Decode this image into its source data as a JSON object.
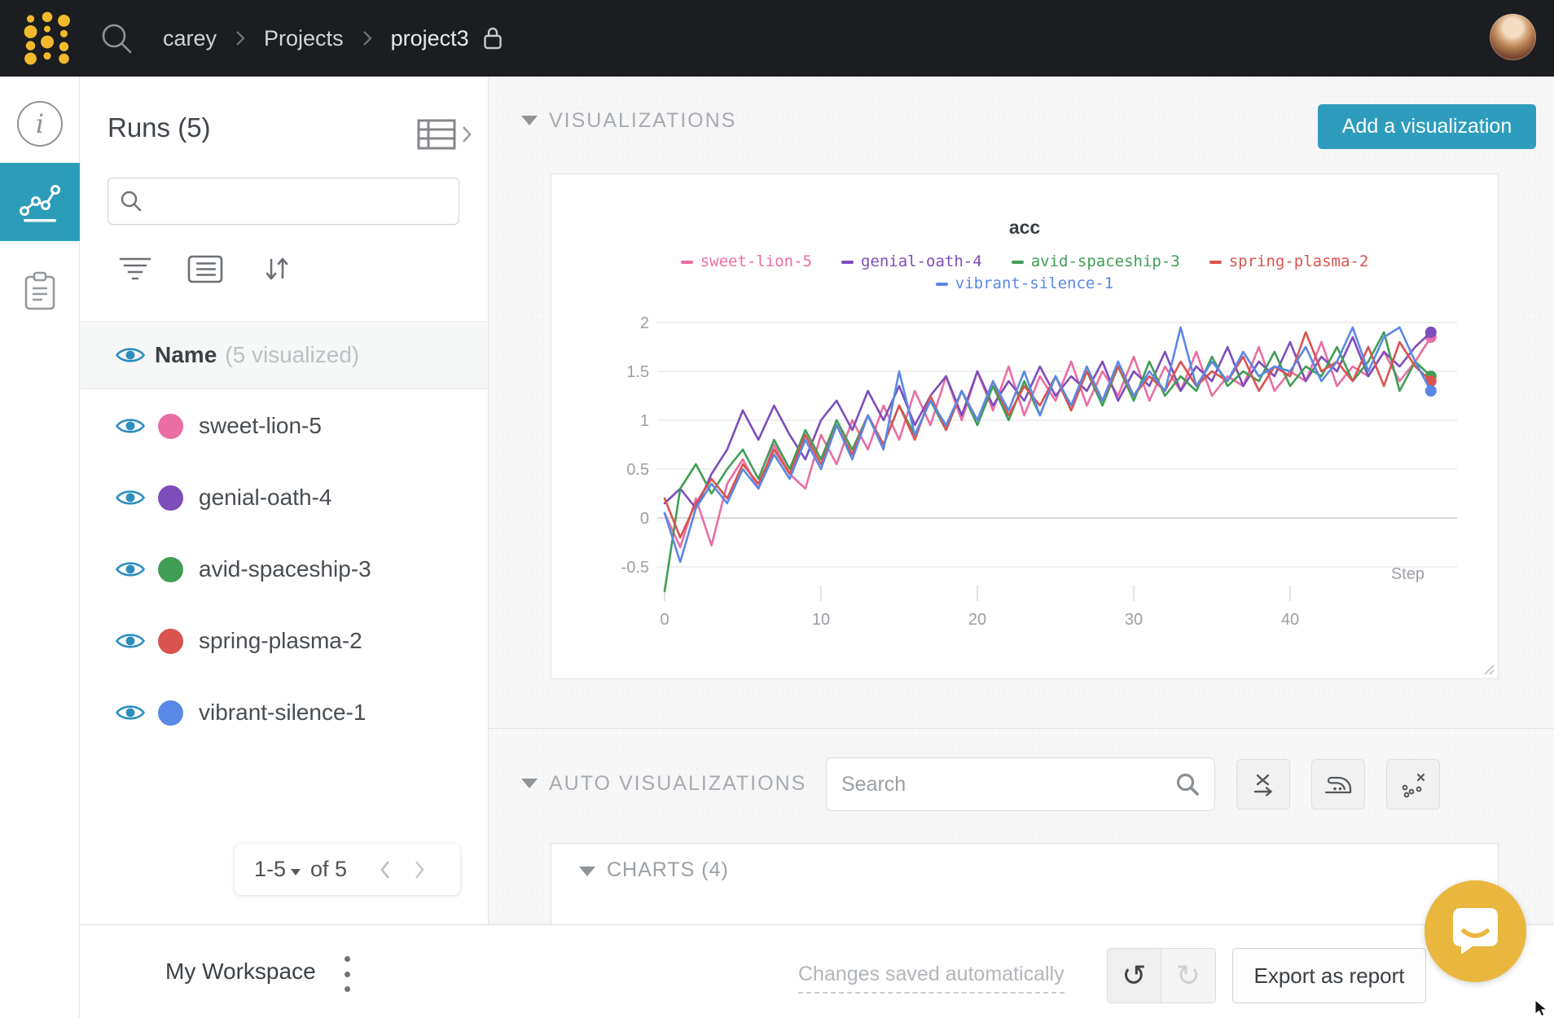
{
  "colors": {
    "navbar_bg": "#1b1d20",
    "accent_teal": "#2e9cbc",
    "logo_yellow": "#f3b92e",
    "chat_yellow": "#e9b63e",
    "eye_blue": "#2c8ebf"
  },
  "icons": {
    "navbar": [
      "search-icon",
      "chevron-right-icon",
      "lock-icon"
    ],
    "rail": [
      "info-icon",
      "line-chart-icon",
      "notes-icon"
    ],
    "runs_panel": [
      "table-columns-icon",
      "chevron-right-icon",
      "search-icon",
      "filter-icon",
      "list-icon",
      "sort-icon",
      "eye-icon"
    ],
    "main": [
      "collapse-triangle-icon",
      "search-icon",
      "x-axis-expression-icon",
      "smoothing-iron-icon",
      "outliers-scatter-icon",
      "resize-handle-icon"
    ],
    "footer": [
      "kebab-menu-icon",
      "undo-icon",
      "redo-icon",
      "chat-bubble-icon",
      "mouse-cursor"
    ],
    "undo_glyph": "↺",
    "redo_glyph": "↻"
  },
  "navbar": {
    "breadcrumb": {
      "user": "carey",
      "section": "Projects",
      "project": "project3"
    }
  },
  "runs_panel": {
    "title": "Runs (5)",
    "header_row": {
      "label": "Name",
      "suffix": "(5 visualized)"
    },
    "runs": [
      {
        "name": "sweet-lion-5",
        "color": "#ea6da4"
      },
      {
        "name": "genial-oath-4",
        "color": "#7d4dbb"
      },
      {
        "name": "avid-spaceship-3",
        "color": "#3f9e54"
      },
      {
        "name": "spring-plasma-2",
        "color": "#d9534f"
      },
      {
        "name": "vibrant-silence-1",
        "color": "#5a88e6"
      }
    ],
    "pagination": {
      "range": "1-5",
      "of_label": "of 5"
    }
  },
  "main": {
    "visualizations_header": "VISUALIZATIONS",
    "add_button": "Add a visualization",
    "auto_viz_header": "AUTO VISUALIZATIONS",
    "search_placeholder": "Search",
    "charts_header": "CHARTS (4)"
  },
  "footer": {
    "workspace": "My Workspace",
    "saved_status": "Changes saved automatically",
    "export_button": "Export as report"
  },
  "chart_data": {
    "type": "line",
    "title": "acc",
    "xlabel": "Step",
    "ylabel": "",
    "x_ticks": [
      0,
      10,
      20,
      30,
      40
    ],
    "y_ticks": [
      2,
      1.5,
      1,
      0.5,
      0,
      -0.5
    ],
    "xlim": [
      0,
      49
    ],
    "ylim": [
      -0.85,
      2.1
    ],
    "grid": true,
    "legend_position": "top",
    "series": [
      {
        "name": "sweet-lion-5",
        "color": "#ea6da4",
        "values": [
          0.05,
          -0.3,
          0.2,
          -0.28,
          0.35,
          0.6,
          0.3,
          0.75,
          0.45,
          0.3,
          0.85,
          0.55,
          1.0,
          0.7,
          1.15,
          0.8,
          1.3,
          0.95,
          1.45,
          1.0,
          1.5,
          1.1,
          1.55,
          1.05,
          1.45,
          1.2,
          1.6,
          1.15,
          1.5,
          1.25,
          1.65,
          1.2,
          1.55,
          1.3,
          1.7,
          1.25,
          1.45,
          1.35,
          1.75,
          1.3,
          1.5,
          1.4,
          1.8,
          1.35,
          1.55,
          1.45,
          1.7,
          1.4,
          1.6,
          1.85
        ]
      },
      {
        "name": "genial-oath-4",
        "color": "#7d4dbb",
        "values": [
          0.15,
          0.3,
          0.1,
          0.45,
          0.7,
          1.1,
          0.8,
          1.15,
          0.85,
          0.6,
          1.0,
          1.2,
          0.9,
          1.3,
          1.0,
          1.35,
          0.95,
          1.25,
          1.45,
          1.05,
          1.5,
          1.15,
          1.4,
          1.2,
          1.55,
          1.25,
          1.45,
          1.3,
          1.6,
          1.2,
          1.5,
          1.35,
          1.7,
          1.3,
          1.55,
          1.4,
          1.75,
          1.35,
          1.6,
          1.45,
          1.8,
          1.4,
          1.65,
          1.5,
          1.85,
          1.45,
          1.7,
          1.55,
          1.75,
          1.9
        ]
      },
      {
        "name": "avid-spaceship-3",
        "color": "#3f9e54",
        "values": [
          -0.75,
          0.3,
          0.55,
          0.25,
          0.5,
          0.7,
          0.4,
          0.8,
          0.5,
          0.9,
          0.6,
          1.0,
          0.7,
          1.05,
          0.75,
          1.15,
          0.85,
          1.2,
          0.9,
          1.3,
          0.95,
          1.35,
          1.0,
          1.4,
          1.05,
          1.45,
          1.1,
          1.5,
          1.15,
          1.55,
          1.2,
          1.6,
          1.25,
          1.45,
          1.3,
          1.65,
          1.35,
          1.5,
          1.4,
          1.7,
          1.35,
          1.55,
          1.45,
          1.75,
          1.4,
          1.6,
          1.9,
          1.3,
          1.6,
          1.45
        ]
      },
      {
        "name": "spring-plasma-2",
        "color": "#d9534f",
        "values": [
          0.2,
          -0.2,
          0.15,
          0.4,
          0.2,
          0.55,
          0.35,
          0.7,
          0.45,
          0.85,
          0.55,
          0.95,
          0.65,
          1.05,
          0.75,
          1.15,
          0.8,
          1.25,
          0.9,
          1.3,
          1.0,
          1.4,
          1.05,
          1.35,
          1.15,
          1.45,
          1.1,
          1.5,
          1.2,
          1.55,
          1.25,
          1.45,
          1.3,
          1.6,
          1.35,
          1.5,
          1.4,
          1.65,
          1.3,
          1.55,
          1.45,
          1.9,
          1.5,
          1.6,
          1.4,
          1.75,
          1.35,
          1.8,
          1.55,
          1.4
        ]
      },
      {
        "name": "vibrant-silence-1",
        "color": "#5a88e6",
        "values": [
          0.05,
          -0.45,
          0.1,
          0.35,
          0.15,
          0.5,
          0.3,
          0.65,
          0.4,
          0.8,
          0.5,
          0.95,
          0.6,
          1.05,
          0.7,
          1.5,
          0.85,
          1.2,
          0.95,
          1.3,
          1.0,
          1.4,
          1.1,
          1.5,
          1.05,
          1.45,
          1.15,
          1.55,
          1.2,
          1.6,
          1.25,
          1.5,
          1.3,
          1.95,
          1.35,
          1.6,
          1.4,
          1.7,
          1.45,
          1.55,
          1.5,
          1.75,
          1.4,
          1.6,
          1.95,
          1.5,
          1.85,
          1.95,
          1.6,
          1.3
        ]
      }
    ]
  }
}
